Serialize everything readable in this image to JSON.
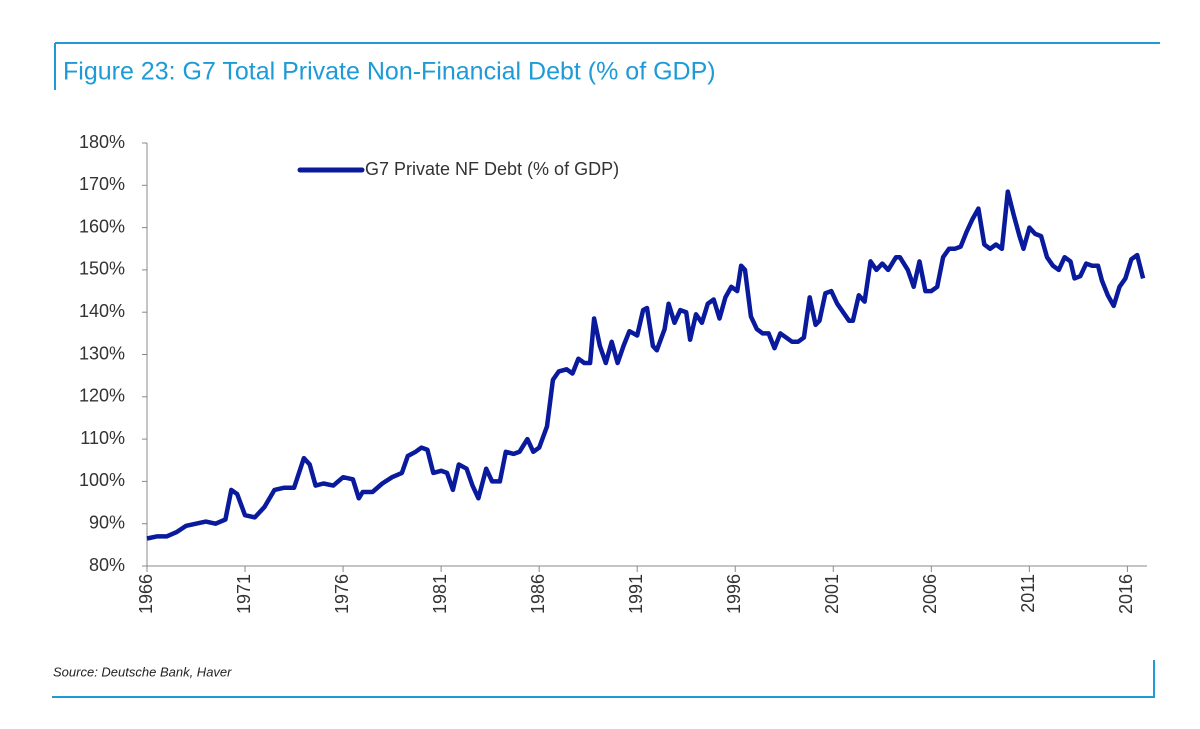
{
  "chart_data": {
    "type": "line",
    "title": "Figure 23: G7 Total Private Non-Financial Debt (% of GDP)",
    "source": "Source: Deutsche Bank, Haver",
    "x": [
      1966,
      1966.5,
      1967,
      1967.5,
      1968,
      1968.5,
      1969,
      1969.5,
      1970,
      1970.3,
      1970.6,
      1971,
      1971.5,
      1972,
      1972.5,
      1973,
      1973.5,
      1974,
      1974.3,
      1974.6,
      1975,
      1975.5,
      1976,
      1976.5,
      1976.8,
      1977,
      1977.5,
      1978,
      1978.5,
      1979,
      1979.3,
      1979.7,
      1980,
      1980.3,
      1980.6,
      1981,
      1981.3,
      1981.6,
      1981.9,
      1982.3,
      1982.6,
      1982.9,
      1983.3,
      1983.6,
      1984,
      1984.3,
      1984.7,
      1985,
      1985.4,
      1985.7,
      1986,
      1986.4,
      1986.7,
      1987,
      1987.4,
      1987.7,
      1988,
      1988.3,
      1988.6,
      1988.8,
      1989.1,
      1989.4,
      1989.7,
      1990,
      1990.3,
      1990.6,
      1991,
      1991.3,
      1991.5,
      1991.8,
      1992,
      1992.4,
      1992.6,
      1992.9,
      1993.2,
      1993.5,
      1993.7,
      1994,
      1994.3,
      1994.6,
      1994.9,
      1995.2,
      1995.5,
      1995.8,
      1996.1,
      1996.3,
      1996.5,
      1996.8,
      1997.1,
      1997.4,
      1997.7,
      1998,
      1998.3,
      1998.6,
      1998.9,
      1999.2,
      1999.5,
      1999.8,
      2000.1,
      2000.3,
      2000.6,
      2000.9,
      2001.2,
      2001.5,
      2001.8,
      2002,
      2002.3,
      2002.6,
      2002.9,
      2003.2,
      2003.5,
      2003.8,
      2004.2,
      2004.4,
      2004.8,
      2005.1,
      2005.4,
      2005.7,
      2006,
      2006.3,
      2006.6,
      2006.9,
      2007.2,
      2007.5,
      2007.8,
      2008.1,
      2008.4,
      2008.7,
      2009,
      2009.3,
      2009.6,
      2009.9,
      2010.2,
      2010.5,
      2010.7,
      2011,
      2011.3,
      2011.6,
      2011.9,
      2012.2,
      2012.5,
      2012.8,
      2013.1,
      2013.3,
      2013.6,
      2013.9,
      2014.2,
      2014.5,
      2014.7,
      2015,
      2015.3,
      2015.6,
      2015.9,
      2016.2,
      2016.5,
      2016.8
    ],
    "series": [
      {
        "name": "G7 Private NF Debt (% of GDP)",
        "color": "#0a1a9c",
        "values": [
          86.5,
          87,
          87,
          88,
          89.5,
          90,
          90.5,
          90,
          91,
          98,
          97,
          92,
          91.5,
          94,
          98,
          98.5,
          98.5,
          105.5,
          104,
          99,
          99.5,
          99,
          101,
          100.5,
          96,
          97.5,
          97.5,
          99.5,
          101,
          102,
          106,
          107,
          108,
          107.5,
          102,
          102.5,
          102,
          98,
          104,
          103,
          99,
          96,
          103,
          100,
          100,
          107,
          106.5,
          107,
          110,
          107,
          108,
          113,
          124,
          126,
          126.5,
          125.5,
          129,
          128,
          128,
          138.5,
          132,
          128,
          133,
          128,
          132,
          135.5,
          134.5,
          140.5,
          141,
          132,
          131,
          136,
          142,
          137.5,
          140.5,
          140,
          133.5,
          139.5,
          137.5,
          142,
          143,
          138.5,
          143.5,
          146,
          145,
          151,
          150,
          139,
          136,
          135,
          135,
          131.5,
          135,
          134,
          133,
          133,
          134,
          143.5,
          137,
          138,
          144.5,
          145,
          142,
          140,
          138,
          138,
          144,
          142.5,
          152,
          150,
          151.5,
          150,
          153,
          153,
          150,
          146,
          152,
          145,
          145,
          146,
          153,
          155,
          155,
          155.5,
          159,
          162,
          164.5,
          156,
          155,
          156,
          155,
          168.5,
          163,
          158,
          155,
          160,
          158.5,
          158,
          153,
          151,
          150,
          153,
          152,
          148,
          148.5,
          151.5,
          151,
          151,
          147.5,
          144,
          141.5,
          146,
          148,
          152.5,
          153.5,
          148
        ]
      }
    ],
    "xlim": [
      1966,
      2017
    ],
    "xticks": [
      1966,
      1971,
      1976,
      1981,
      1986,
      1991,
      1996,
      2001,
      2006,
      2011,
      2016
    ],
    "ylim": [
      80,
      180
    ],
    "yticks": [
      {
        "value": 80,
        "label": "80%"
      },
      {
        "value": 90,
        "label": "90%"
      },
      {
        "value": 100,
        "label": "100%"
      },
      {
        "value": 110,
        "label": "110%"
      },
      {
        "value": 120,
        "label": "120%"
      },
      {
        "value": 130,
        "label": "130%"
      },
      {
        "value": 140,
        "label": "140%"
      },
      {
        "value": 150,
        "label": "150%"
      },
      {
        "value": 160,
        "label": "160%"
      },
      {
        "value": 170,
        "label": "170%"
      },
      {
        "value": 180,
        "label": "180%"
      }
    ],
    "grid": false
  }
}
